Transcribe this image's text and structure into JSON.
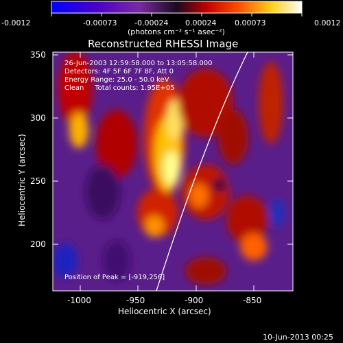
{
  "colorbar": {
    "ticks": [
      "-0.0012",
      "-0.00073",
      "-0.00024",
      "0.00024",
      "0.00073",
      "0.0012"
    ],
    "units": "(photons cm⁻² s⁻¹ asec⁻²)"
  },
  "title": "Reconstructed RHESSI Image",
  "annotations": [
    "26-Jun-2003 12:59:58.000 to 13:05:58.000",
    "Detectors: 4F 5F 6F 7F 8F, Att 0",
    "Energy Range: 25.0 - 50.0 keV",
    "Clean     Total counts: 1.95E+05"
  ],
  "peak": "Position of Peak = [-919,256]",
  "axes": {
    "xlabel": "Heliocentric X (arcsec)",
    "ylabel": "Heliocentric Y (arcsec)",
    "xticks": [
      "-1000",
      "-950",
      "-900",
      "-850"
    ],
    "yticks": [
      "350",
      "300",
      "250",
      "200"
    ]
  },
  "footer_date": "10-Jun-2013 00:25",
  "colors": {
    "background": "#000000",
    "axes": "#ffffff"
  }
}
